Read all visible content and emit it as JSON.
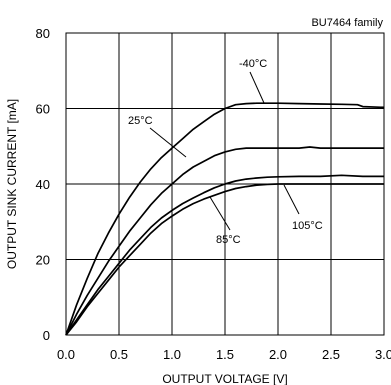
{
  "chart_data": {
    "type": "line",
    "title": "",
    "family_label": "BU7464 family",
    "xlabel": "OUTPUT VOLTAGE [V]",
    "ylabel": "OUTPUT SINK CURRENT [mA]",
    "xlim": [
      0,
      3.0
    ],
    "ylim": [
      0,
      80
    ],
    "x_ticks": [
      "0.0",
      "0.5",
      "1.0",
      "1.5",
      "2.0",
      "2.5",
      "3.0"
    ],
    "y_ticks": [
      "0",
      "20",
      "40",
      "60",
      "80"
    ],
    "grid": true,
    "series": [
      {
        "name": "-40°C",
        "x": [
          0,
          0.1,
          0.2,
          0.3,
          0.4,
          0.5,
          0.6,
          0.7,
          0.8,
          0.9,
          1.0,
          1.1,
          1.2,
          1.3,
          1.4,
          1.5,
          1.6,
          1.7,
          1.8,
          1.9,
          2.0,
          2.2,
          2.4,
          2.6,
          2.75,
          2.8,
          3.0
        ],
        "y": [
          0,
          8,
          15,
          21.5,
          27,
          32,
          36.5,
          40.5,
          44,
          47,
          49.5,
          52,
          54.5,
          56.5,
          58.5,
          60,
          61,
          61.3,
          61.4,
          61.4,
          61.4,
          61.3,
          61.2,
          61.1,
          61,
          60.5,
          60.3
        ]
      },
      {
        "name": "25°C",
        "x": [
          0,
          0.1,
          0.2,
          0.3,
          0.4,
          0.5,
          0.6,
          0.7,
          0.8,
          0.9,
          1.0,
          1.1,
          1.2,
          1.3,
          1.4,
          1.5,
          1.6,
          1.7,
          1.8,
          2.0,
          2.2,
          2.3,
          2.4,
          2.6,
          2.8,
          3.0
        ],
        "y": [
          0,
          5.5,
          10.5,
          15,
          19.5,
          23.5,
          27.5,
          31,
          34.5,
          37.5,
          40,
          42.5,
          44.5,
          46,
          47.5,
          48.5,
          49.2,
          49.5,
          49.5,
          49.5,
          49.5,
          49.8,
          49.5,
          49.5,
          49.5,
          49.5
        ]
      },
      {
        "name": "105°C",
        "x": [
          0,
          0.1,
          0.2,
          0.3,
          0.4,
          0.5,
          0.6,
          0.7,
          0.8,
          0.9,
          1.0,
          1.1,
          1.2,
          1.3,
          1.4,
          1.5,
          1.6,
          1.7,
          1.8,
          1.9,
          2.0,
          2.2,
          2.4,
          2.6,
          2.8,
          3.0
        ],
        "y": [
          0,
          4,
          8,
          12,
          15.5,
          19,
          22.5,
          25.5,
          28.5,
          31,
          33,
          34.8,
          36.3,
          37.7,
          39,
          40,
          40.8,
          41.3,
          41.6,
          41.8,
          41.9,
          42,
          42,
          42.3,
          42,
          42
        ]
      },
      {
        "name": "85°C",
        "x": [
          0,
          0.1,
          0.2,
          0.3,
          0.4,
          0.5,
          0.6,
          0.7,
          0.8,
          0.9,
          1.0,
          1.1,
          1.2,
          1.3,
          1.4,
          1.5,
          1.6,
          1.7,
          1.8,
          1.9,
          2.0,
          2.2,
          2.4,
          2.6,
          2.8,
          3.0
        ],
        "y": [
          0,
          3.5,
          7.5,
          11,
          14.5,
          18,
          21,
          24,
          27,
          29.5,
          31.5,
          33.3,
          34.8,
          36,
          37,
          38,
          38.8,
          39.3,
          39.7,
          39.9,
          40,
          40,
          40,
          40,
          40,
          40
        ]
      }
    ],
    "annotations": [
      {
        "text": "-40°C",
        "series": "-40°C"
      },
      {
        "text": "25°C",
        "series": "25°C"
      },
      {
        "text": "105°C",
        "series": "105°C"
      },
      {
        "text": "85°C",
        "series": "85°C"
      }
    ]
  }
}
